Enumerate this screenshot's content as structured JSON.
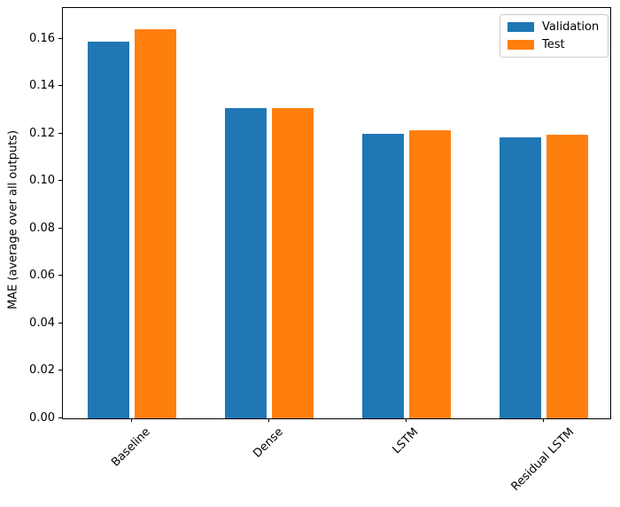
{
  "figure": {
    "background": "#ffffff"
  },
  "chart_data": {
    "type": "bar",
    "title": "",
    "xlabel": "",
    "ylabel": "MAE (average over all outputs)",
    "categories": [
      "Baseline",
      "Dense",
      "LSTM",
      "Residual LSTM"
    ],
    "series": [
      {
        "name": "Validation",
        "color": "#1f77b4",
        "values": [
          0.159,
          0.131,
          0.12,
          0.1185
        ]
      },
      {
        "name": "Test",
        "color": "#ff7f0e",
        "values": [
          0.164,
          0.131,
          0.1215,
          0.1195
        ]
      }
    ],
    "ylim": [
      0,
      0.1731
    ],
    "yticks": [
      0.0,
      0.02,
      0.04,
      0.06,
      0.08,
      0.1,
      0.12,
      0.14,
      0.16
    ],
    "ytick_labels": [
      "0.00",
      "0.02",
      "0.04",
      "0.06",
      "0.08",
      "0.10",
      "0.12",
      "0.14",
      "0.16"
    ],
    "grid": false,
    "legend_position": "upper right",
    "xtick_rotation": 45
  }
}
